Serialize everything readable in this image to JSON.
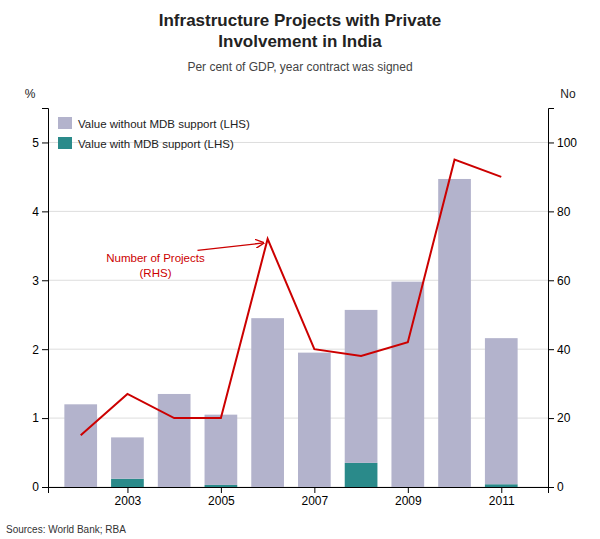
{
  "chart_data": {
    "type": "bar",
    "title": "Infrastructure Projects with Private\nInvolvement in India",
    "subtitle": "Per cent of GDP, year contract was signed",
    "source": "Sources: World Bank; RBA",
    "ylabel": "%",
    "y2label": "No",
    "annotation": "Number of Projects\n(RHS)",
    "x": [
      2002,
      2003,
      2004,
      2005,
      2006,
      2007,
      2008,
      2009,
      2010,
      2011
    ],
    "xlim": [
      2001.3,
      2012.0
    ],
    "xticks": [
      2003,
      2005,
      2007,
      2009,
      2011
    ],
    "ylim": [
      0,
      5.5
    ],
    "yticks": [
      0,
      1,
      2,
      3,
      4,
      5
    ],
    "y2lim": [
      0,
      110
    ],
    "y2ticks": [
      0,
      20,
      40,
      60,
      80,
      100
    ],
    "stacked": true,
    "grid": true,
    "legend": "upper left",
    "series": [
      {
        "name": "Value with MDB support (LHS)",
        "color": "#2a8a8a",
        "type": "bar",
        "values": [
          0.0,
          0.12,
          0.0,
          0.03,
          0.0,
          0.0,
          0.35,
          0.0,
          0.0,
          0.04
        ]
      },
      {
        "name": "Value without MDB support (LHS)",
        "color": "#b3b3cc",
        "type": "bar",
        "values": [
          1.2,
          0.6,
          1.35,
          1.02,
          2.45,
          1.95,
          2.22,
          2.98,
          4.47,
          2.12
        ]
      },
      {
        "type": "line",
        "axis": "y2",
        "color": "#cc0000",
        "values": [
          15,
          27,
          20,
          20,
          72,
          40,
          38,
          42,
          95,
          90
        ]
      }
    ]
  }
}
